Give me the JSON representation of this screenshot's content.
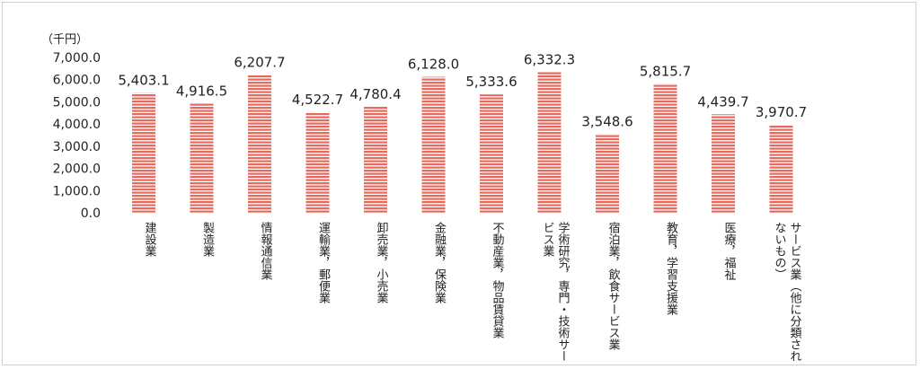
{
  "chart_data": {
    "type": "bar",
    "unit_label": "（千円）",
    "categories": [
      "建設業",
      "製造業",
      "情報通信業",
      "運輸業，郵便業",
      "卸売業，小売業",
      "金融業，保険業",
      "不動産業，物品賃貸業",
      "学術研究，専門・技術サービス業",
      "宿泊業，飲食サービス業",
      "教育，学習支援業",
      "医療，福祉",
      "サービス業（他に分類されないもの）"
    ],
    "category_lines": [
      [
        "建設業"
      ],
      [
        "製造業"
      ],
      [
        "情報通信業"
      ],
      [
        "運輸業，郵便業"
      ],
      [
        "卸売業，小売業"
      ],
      [
        "金融業，保険業"
      ],
      [
        "不動産業，物品賃貸業"
      ],
      [
        "学術研究，専門・技術サー",
        "ビス業"
      ],
      [
        "宿泊業，飲食サービス業"
      ],
      [
        "教育，学習支援業"
      ],
      [
        "医療，福祉"
      ],
      [
        "サービス業（他に分類され",
        "ないもの）"
      ]
    ],
    "values": [
      5403.1,
      4916.5,
      6207.7,
      4522.7,
      4780.4,
      6128.0,
      5333.6,
      6332.3,
      3548.6,
      5815.7,
      4439.7,
      3970.7
    ],
    "value_labels": [
      "5,403.1",
      "4,916.5",
      "6,207.7",
      "4,522.7",
      "4,780.4",
      "6,128.0",
      "5,333.6",
      "6,332.3",
      "3,548.6",
      "5,815.7",
      "4,439.7",
      "3,970.7"
    ],
    "yticks": [
      "0.0",
      "1,000.0",
      "2,000.0",
      "3,000.0",
      "4,000.0",
      "5,000.0",
      "6,000.0",
      "7,000.0"
    ],
    "ylim": [
      0,
      7000
    ],
    "grid": false,
    "bar_colors": {
      "stripe": "#e8685c",
      "gap": "#ffffff"
    }
  }
}
